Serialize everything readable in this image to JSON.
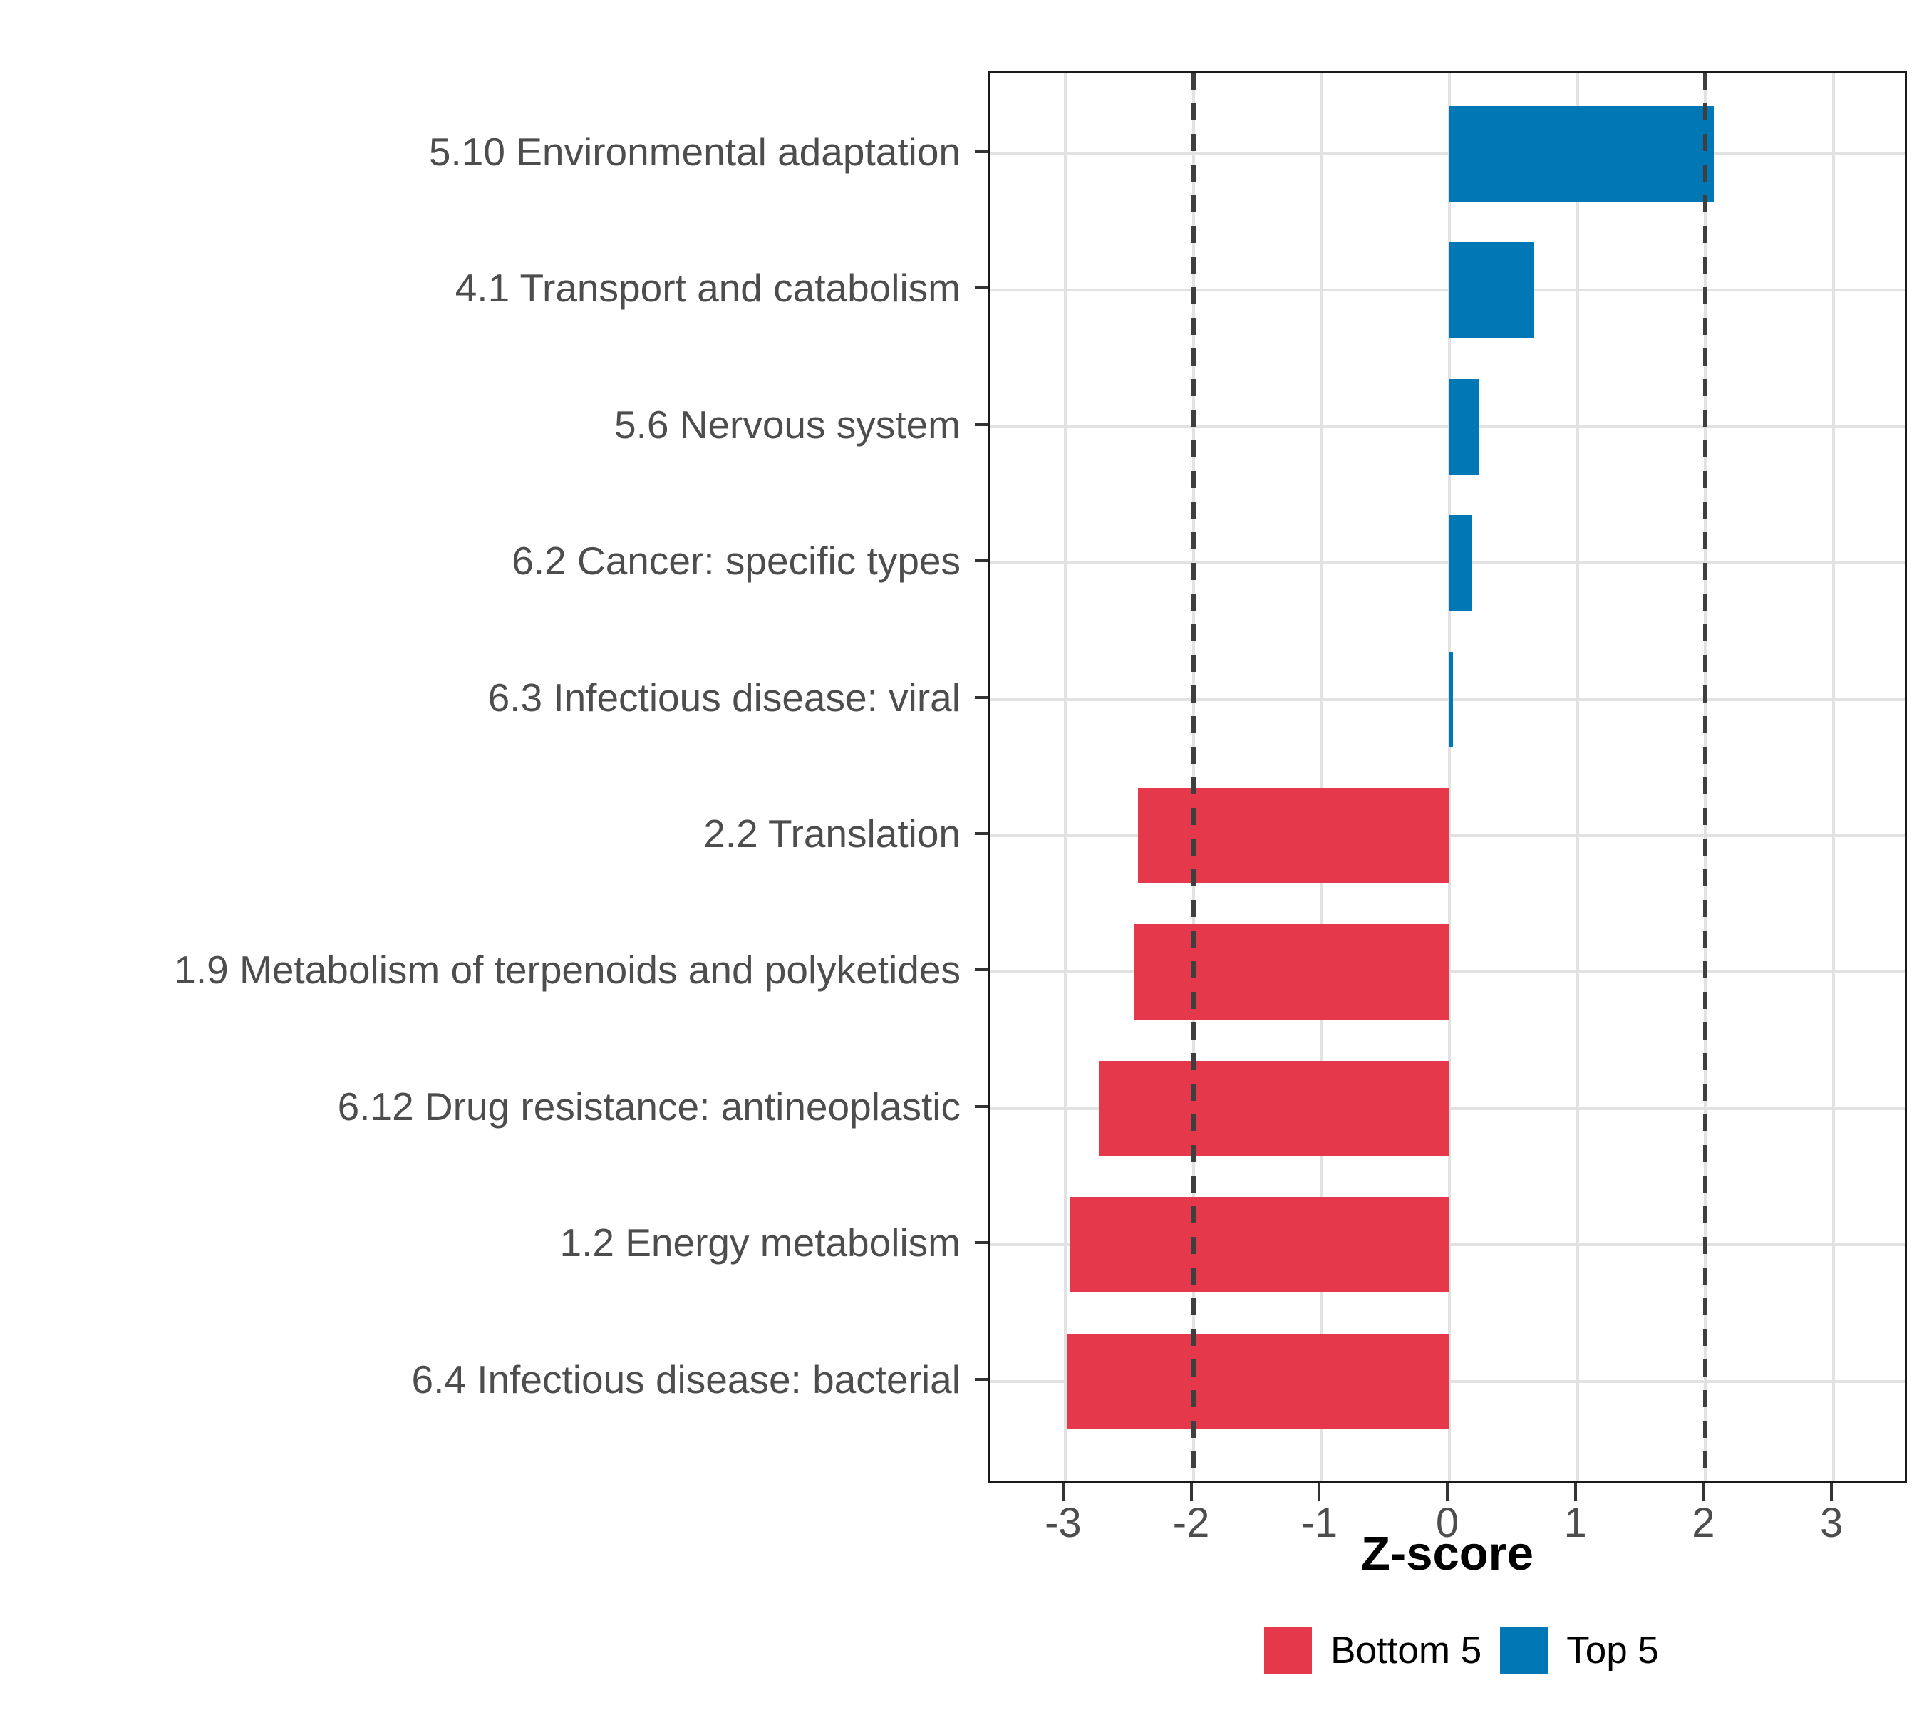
{
  "chart_data": {
    "type": "bar",
    "orientation": "horizontal",
    "title": "",
    "xlabel": "Z-score",
    "ylabel": "",
    "xlim": [
      -3.6,
      3.6
    ],
    "x_ticks": [
      -3,
      -2,
      -1,
      0,
      1,
      2,
      3
    ],
    "reference_lines": [
      -2,
      2
    ],
    "grid": "major",
    "legend_position": "bottom",
    "categories": [
      "5.10 Environmental adaptation",
      "4.1 Transport and catabolism",
      "5.6 Nervous system",
      "6.2 Cancer: specific types",
      "6.3 Infectious disease: viral",
      "2.2 Translation",
      "1.9 Metabolism of terpenoids and polyketides",
      "6.12 Drug resistance: antineoplastic",
      "1.2 Energy metabolism",
      "6.4 Infectious disease: bacterial"
    ],
    "bars": [
      {
        "label": "5.10 Environmental adaptation",
        "value": 2.07,
        "group": "Top 5"
      },
      {
        "label": "4.1 Transport and catabolism",
        "value": 0.66,
        "group": "Top 5"
      },
      {
        "label": "5.6 Nervous system",
        "value": 0.23,
        "group": "Top 5"
      },
      {
        "label": "6.2 Cancer: specific types",
        "value": 0.17,
        "group": "Top 5"
      },
      {
        "label": "6.3 Infectious disease: viral",
        "value": 0.03,
        "group": "Top 5"
      },
      {
        "label": "2.2 Translation",
        "value": -2.43,
        "group": "Bottom 5"
      },
      {
        "label": "1.9 Metabolism of terpenoids and polyketides",
        "value": -2.46,
        "group": "Bottom 5"
      },
      {
        "label": "6.12 Drug resistance: antineoplastic",
        "value": -2.74,
        "group": "Bottom 5"
      },
      {
        "label": "1.2 Energy metabolism",
        "value": -2.96,
        "group": "Bottom 5"
      },
      {
        "label": "6.4 Infectious disease: bacterial",
        "value": -2.98,
        "group": "Bottom 5"
      }
    ],
    "series": [
      {
        "name": "Bottom 5",
        "color": "#E5384A"
      },
      {
        "name": "Top 5",
        "color": "#0277B5"
      }
    ]
  },
  "legend": {
    "items": [
      {
        "label": "Bottom 5",
        "color": "#E5384A"
      },
      {
        "label": "Top 5",
        "color": "#0277B5"
      }
    ]
  },
  "colors": {
    "grid": "#E2E2E2",
    "reference_line": "#3F3F3F",
    "axis_text": "#4D4D4D",
    "axis_line": "#1A1A1A",
    "background": "#FFFFFF"
  }
}
